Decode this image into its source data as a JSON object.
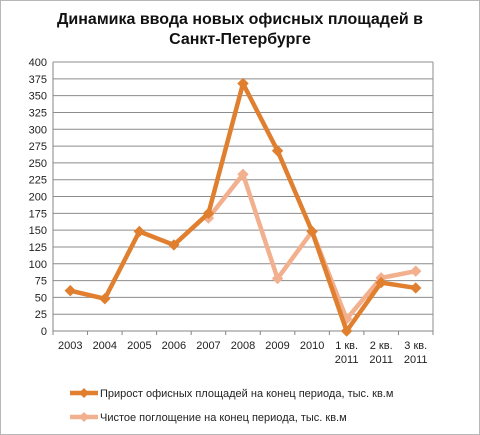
{
  "chart_data": {
    "type": "line",
    "title": "Динамика ввода новых офисных площадей в Санкт-Петербурге",
    "categories": [
      "2003",
      "2004",
      "2005",
      "2006",
      "2007",
      "2008",
      "2009",
      "2010",
      [
        "1 кв.",
        "2011"
      ],
      [
        "2 кв.",
        "2011"
      ],
      [
        "3 кв.",
        "2011"
      ]
    ],
    "ylim": [
      0,
      400
    ],
    "yticks": [
      0,
      25,
      50,
      75,
      100,
      125,
      150,
      175,
      200,
      225,
      250,
      275,
      300,
      325,
      350,
      375,
      400
    ],
    "grid": true,
    "legend_position": "bottom",
    "series": [
      {
        "name": "Прирост офисных площадей на конец периода, тыс. кв.м",
        "color": "#E07F2F",
        "values": [
          60,
          48,
          148,
          128,
          175,
          368,
          268,
          148,
          0,
          72,
          64
        ]
      },
      {
        "name": "Чистое поглощение на конец периода, тыс. кв.м",
        "color": "#F2B08E",
        "values": [
          null,
          null,
          null,
          null,
          168,
          233,
          78,
          148,
          18,
          79,
          89
        ]
      }
    ]
  }
}
